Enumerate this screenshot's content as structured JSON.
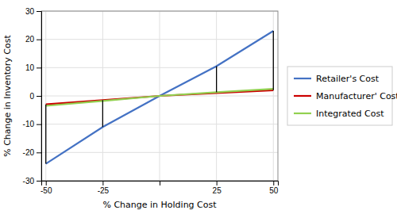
{
  "chart_data": {
    "type": "line",
    "x_label": "% Change in Holding Cost",
    "y_label": "% Change in Inventory Cost",
    "x": [
      -50,
      -25,
      0,
      25,
      50
    ],
    "series": [
      {
        "name": "Retailer's Cost",
        "color": "#4472C4",
        "values": [
          -24,
          -11,
          0,
          10.5,
          23
        ]
      },
      {
        "name": "Manufacturer' Cost",
        "color": "#CC0000",
        "values": [
          -3.0,
          -1.5,
          0,
          1.0,
          2.0
        ]
      },
      {
        "name": "Integrated Cost",
        "color": "#92D050",
        "values": [
          -3.5,
          -1.8,
          0,
          1.3,
          2.5
        ]
      }
    ],
    "vertical_lines": [
      {
        "x": -50,
        "y_bottom": -24,
        "y_top": -3.0
      },
      {
        "x": -25,
        "y_bottom": -11,
        "y_top": -1.5
      },
      {
        "x": 25,
        "y_bottom": 1.3,
        "y_top": 10.5
      },
      {
        "x": 50,
        "y_bottom": 2.0,
        "y_top": 23
      }
    ],
    "xlim": [
      -52,
      52
    ],
    "xticks": [
      -50,
      -25,
      {
        "value": 0,
        "label": null
      },
      25,
      50
    ],
    "ylim": [
      -30,
      30
    ],
    "yticks": [
      -30,
      -20,
      -10,
      0,
      10,
      20,
      30
    ],
    "grid": true,
    "legend": "right"
  }
}
